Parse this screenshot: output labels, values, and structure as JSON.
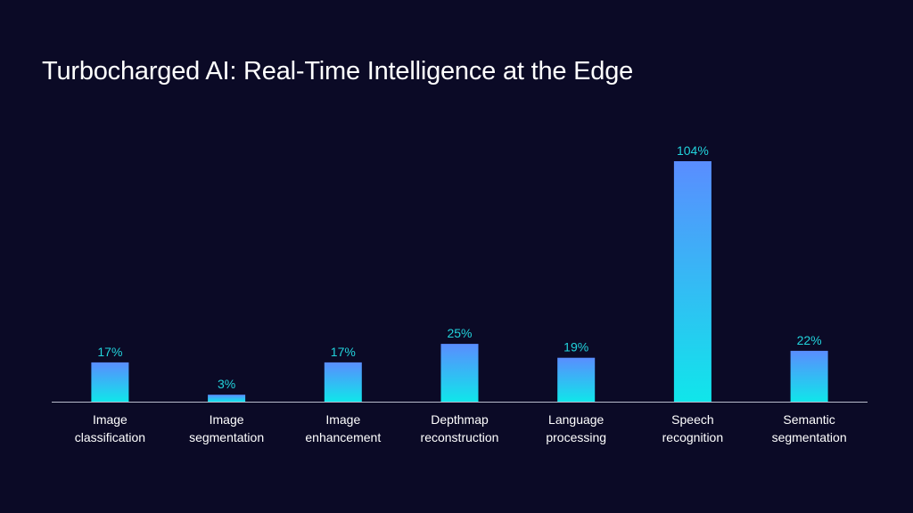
{
  "slide": {
    "title": "Turbocharged AI: Real-Time Intelligence at the Edge"
  },
  "colors": {
    "background": "#0b0a26",
    "bar_top": "#5a8dff",
    "bar_bottom": "#10e6ea",
    "value_label": "#22d3dc",
    "category_label": "#ffffff",
    "axis": "#b9bccc"
  },
  "chart_data": {
    "type": "bar",
    "title": "Turbocharged AI: Real-Time Intelligence at the Edge",
    "xlabel": "",
    "ylabel": "",
    "ylim": [
      0,
      104
    ],
    "grid": false,
    "legend": "none",
    "categories": [
      [
        "Image",
        "classification"
      ],
      [
        "Image",
        "segmentation"
      ],
      [
        "Image",
        "enhancement"
      ],
      [
        "Depthmap",
        "reconstruction"
      ],
      [
        "Language",
        "processing"
      ],
      [
        "Speech",
        "recognition"
      ],
      [
        "Semantic",
        "segmentation"
      ]
    ],
    "values": [
      17,
      3,
      17,
      25,
      19,
      104,
      22
    ],
    "value_labels": [
      "17%",
      "3%",
      "17%",
      "25%",
      "19%",
      "104%",
      "22%"
    ],
    "unit": "%"
  }
}
